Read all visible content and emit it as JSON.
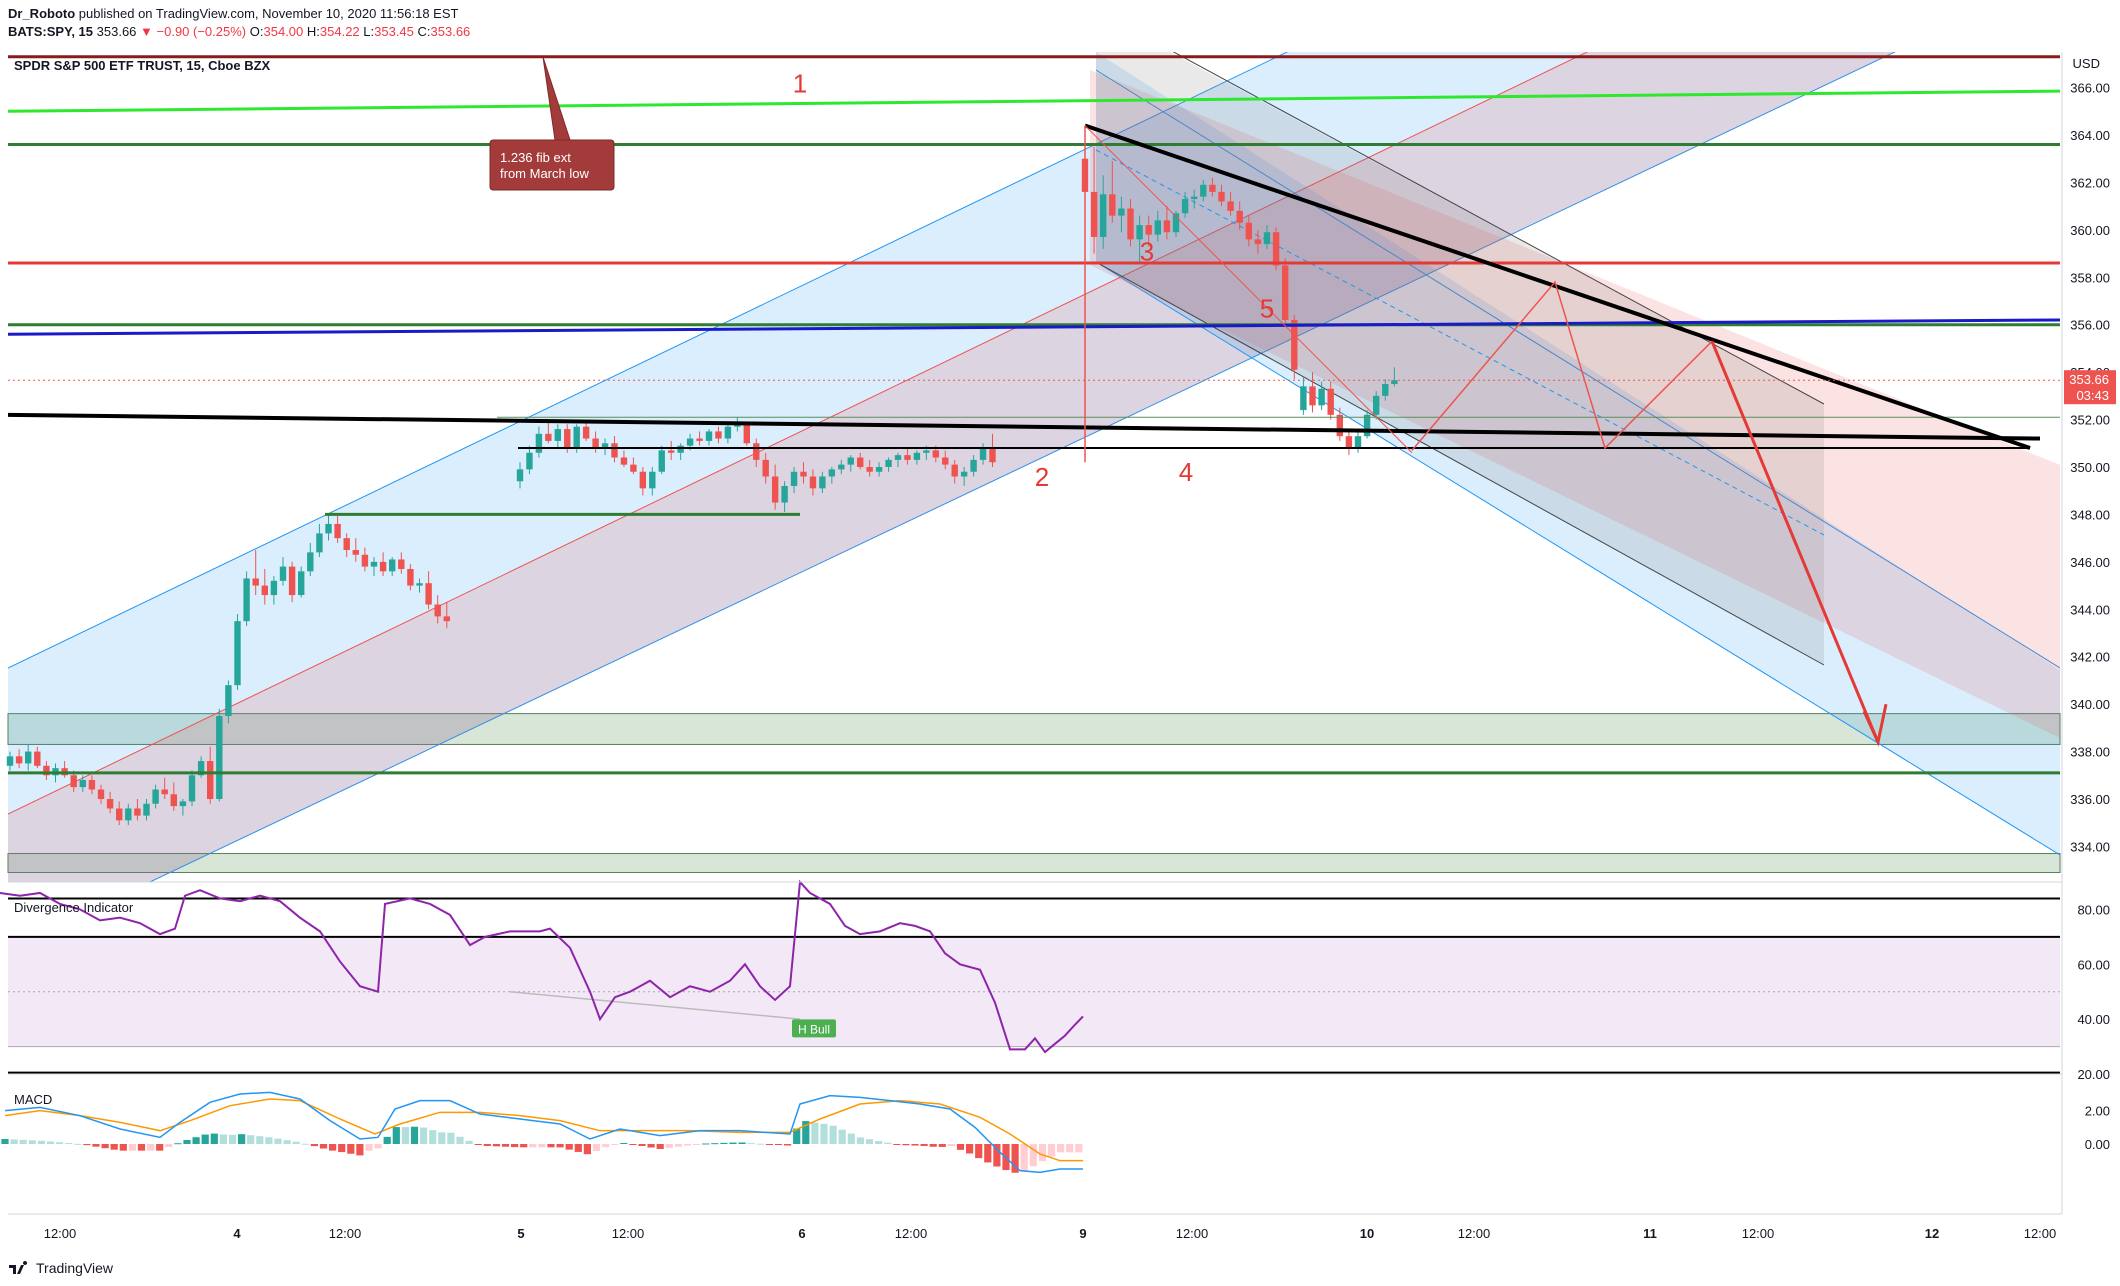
{
  "header": {
    "author": "Dr_Roboto",
    "published": "published on TradingView.com, November 10, 2020 11:56:18 EST",
    "symbol": "BATS:SPY, 15",
    "last": "353.66",
    "change": "▼ −0.90 (−0.25%)",
    "o_label": "O:",
    "o": "354.00",
    "h_label": "H:",
    "h": "354.22",
    "l_label": "L:",
    "l": "353.45",
    "c_label": "C:",
    "c": "353.66"
  },
  "footer": {
    "brand": "TradingView"
  },
  "colors": {
    "up": "#26a69a",
    "down": "#ef5350",
    "blue_channel": "#2196f3",
    "red_channel": "#ef5350",
    "rsi": "#8e24aa",
    "macd": "#2196f3",
    "signal": "#ff9800"
  },
  "chart_data": {
    "type": "candlestick",
    "title": "SPDR S&P 500 ETF TRUST, 15, Cboe BZX",
    "currency": "USD",
    "price_axis": {
      "ylim": [
        332.5,
        367.5
      ],
      "ticks": [
        "366.00",
        "364.00",
        "362.00",
        "360.00",
        "358.00",
        "356.00",
        "354.00",
        "352.00",
        "350.00",
        "348.00",
        "346.00",
        "344.00",
        "342.00",
        "340.00",
        "338.00",
        "336.00",
        "334.00"
      ]
    },
    "time_axis": {
      "ticks": [
        "12:00",
        "4",
        "12:00",
        "5",
        "12:00",
        "6",
        "12:00",
        "9",
        "12:00",
        "10",
        "12:00",
        "11",
        "12:00",
        "12",
        "12:00"
      ]
    },
    "last_price": {
      "value": "353.66",
      "countdown": "03:43",
      "price": 353.66
    },
    "candles": [
      [
        337.4,
        338.0,
        337.2,
        337.8
      ],
      [
        337.8,
        338.1,
        337.3,
        337.5
      ],
      [
        337.5,
        338.3,
        337.2,
        338.0
      ],
      [
        338.0,
        338.2,
        337.3,
        337.4
      ],
      [
        337.4,
        337.6,
        336.8,
        337.0
      ],
      [
        337.0,
        337.5,
        336.7,
        337.3
      ],
      [
        337.3,
        337.6,
        336.9,
        337.0
      ],
      [
        337.0,
        337.2,
        336.3,
        336.5
      ],
      [
        336.5,
        337.0,
        336.3,
        336.8
      ],
      [
        336.8,
        337.0,
        336.2,
        336.4
      ],
      [
        336.4,
        336.6,
        335.8,
        336.0
      ],
      [
        336.0,
        336.3,
        335.4,
        335.6
      ],
      [
        335.6,
        335.9,
        334.9,
        335.1
      ],
      [
        335.1,
        335.8,
        334.9,
        335.6
      ],
      [
        335.6,
        336.0,
        335.1,
        335.3
      ],
      [
        335.3,
        336.0,
        335.1,
        335.8
      ],
      [
        335.8,
        336.6,
        335.6,
        336.4
      ],
      [
        336.4,
        336.9,
        336.0,
        336.2
      ],
      [
        336.2,
        336.7,
        335.5,
        335.7
      ],
      [
        335.7,
        336.0,
        335.3,
        335.9
      ],
      [
        335.9,
        337.2,
        335.7,
        337.0
      ],
      [
        337.0,
        337.8,
        336.9,
        337.6
      ],
      [
        337.6,
        338.2,
        335.8,
        336.0
      ],
      [
        336.0,
        339.8,
        335.9,
        339.5
      ],
      [
        339.5,
        341.0,
        339.2,
        340.8
      ],
      [
        340.8,
        343.8,
        340.6,
        343.5
      ],
      [
        343.5,
        345.6,
        343.3,
        345.3
      ],
      [
        345.3,
        346.5,
        344.6,
        345.0
      ],
      [
        345.0,
        345.7,
        344.2,
        344.6
      ],
      [
        344.6,
        345.4,
        344.2,
        345.2
      ],
      [
        345.2,
        346.2,
        345.0,
        345.8
      ],
      [
        345.8,
        346.0,
        344.3,
        344.6
      ],
      [
        344.6,
        345.8,
        344.5,
        345.6
      ],
      [
        345.6,
        346.8,
        345.4,
        346.4
      ],
      [
        346.4,
        347.6,
        346.2,
        347.2
      ],
      [
        347.2,
        348.0,
        346.9,
        347.6
      ],
      [
        347.6,
        348.0,
        346.8,
        347.0
      ],
      [
        347.0,
        347.2,
        346.2,
        346.5
      ],
      [
        346.5,
        347.0,
        346.0,
        346.3
      ],
      [
        346.3,
        346.6,
        345.6,
        345.8
      ],
      [
        345.8,
        346.2,
        345.4,
        346.0
      ],
      [
        346.0,
        346.4,
        345.4,
        345.6
      ],
      [
        345.6,
        346.2,
        345.4,
        346.1
      ],
      [
        346.1,
        346.4,
        345.5,
        345.7
      ],
      [
        345.7,
        345.9,
        344.8,
        345.0
      ],
      [
        345.0,
        345.3,
        344.7,
        345.1
      ],
      [
        345.1,
        345.6,
        344.0,
        344.2
      ],
      [
        344.2,
        344.6,
        343.4,
        343.7
      ],
      [
        343.7,
        344.3,
        343.2,
        343.5
      ],
      [
        349.4,
        350.2,
        349.1,
        349.9
      ],
      [
        349.9,
        350.9,
        349.7,
        350.6
      ],
      [
        350.6,
        351.7,
        350.4,
        351.4
      ],
      [
        351.4,
        351.9,
        351.0,
        351.1
      ],
      [
        351.1,
        351.8,
        350.8,
        351.6
      ],
      [
        351.6,
        351.8,
        350.6,
        350.8
      ],
      [
        350.8,
        351.8,
        350.6,
        351.7
      ],
      [
        351.7,
        352.0,
        351.1,
        351.2
      ],
      [
        351.2,
        351.5,
        350.6,
        350.8
      ],
      [
        350.8,
        351.2,
        350.5,
        351.0
      ],
      [
        351.0,
        351.3,
        350.2,
        350.4
      ],
      [
        350.4,
        350.7,
        350.0,
        350.1
      ],
      [
        350.1,
        350.4,
        349.7,
        349.8
      ],
      [
        349.8,
        350.0,
        348.8,
        349.1
      ],
      [
        349.1,
        350.0,
        348.8,
        349.8
      ],
      [
        349.8,
        350.9,
        349.7,
        350.7
      ],
      [
        350.7,
        351.1,
        350.3,
        350.6
      ],
      [
        350.6,
        351.0,
        350.3,
        350.9
      ],
      [
        350.9,
        351.4,
        350.7,
        351.2
      ],
      [
        351.2,
        351.5,
        350.9,
        351.1
      ],
      [
        351.1,
        351.6,
        350.9,
        351.5
      ],
      [
        351.5,
        351.7,
        351.0,
        351.2
      ],
      [
        351.2,
        351.9,
        351.0,
        351.7
      ],
      [
        351.7,
        352.1,
        351.5,
        351.8
      ],
      [
        351.8,
        351.9,
        350.9,
        351.0
      ],
      [
        351.0,
        351.2,
        350.0,
        350.3
      ],
      [
        350.3,
        350.6,
        349.3,
        349.6
      ],
      [
        349.6,
        350.1,
        348.2,
        348.5
      ],
      [
        348.5,
        349.4,
        348.1,
        349.2
      ],
      [
        349.2,
        350.0,
        348.9,
        349.8
      ],
      [
        349.8,
        350.2,
        349.3,
        349.6
      ],
      [
        349.6,
        349.9,
        348.8,
        349.1
      ],
      [
        349.1,
        349.8,
        348.9,
        349.6
      ],
      [
        349.6,
        350.0,
        349.3,
        349.9
      ],
      [
        349.9,
        350.3,
        349.7,
        350.1
      ],
      [
        350.1,
        350.5,
        349.8,
        350.4
      ],
      [
        350.4,
        350.6,
        349.9,
        350.0
      ],
      [
        350.0,
        350.3,
        349.6,
        349.8
      ],
      [
        349.8,
        350.2,
        349.6,
        350.0
      ],
      [
        350.0,
        350.4,
        349.8,
        350.3
      ],
      [
        350.3,
        350.6,
        350.0,
        350.5
      ],
      [
        350.5,
        350.8,
        350.1,
        350.3
      ],
      [
        350.3,
        350.7,
        350.1,
        350.6
      ],
      [
        350.6,
        350.9,
        350.3,
        350.7
      ],
      [
        350.7,
        350.9,
        350.2,
        350.4
      ],
      [
        350.4,
        350.7,
        349.9,
        350.1
      ],
      [
        350.1,
        350.3,
        349.3,
        349.6
      ],
      [
        349.6,
        350.0,
        349.2,
        349.8
      ],
      [
        349.8,
        350.5,
        349.6,
        350.3
      ],
      [
        350.3,
        351.0,
        350.1,
        350.8
      ],
      [
        350.8,
        351.4,
        350.0,
        350.2
      ],
      [
        363.0,
        364.4,
        361.0,
        361.6
      ],
      [
        361.6,
        363.5,
        359.0,
        359.7
      ],
      [
        359.7,
        362.3,
        359.2,
        361.5
      ],
      [
        361.5,
        362.9,
        360.3,
        360.6
      ],
      [
        360.6,
        361.4,
        359.9,
        360.9
      ],
      [
        360.9,
        361.3,
        359.3,
        359.6
      ],
      [
        359.6,
        360.6,
        358.6,
        360.2
      ],
      [
        360.2,
        360.6,
        359.3,
        359.8
      ],
      [
        359.8,
        360.8,
        359.5,
        360.4
      ],
      [
        360.4,
        361.0,
        359.6,
        359.9
      ],
      [
        359.9,
        360.8,
        359.7,
        360.7
      ],
      [
        360.7,
        361.6,
        360.5,
        361.3
      ],
      [
        361.3,
        361.7,
        360.9,
        361.4
      ],
      [
        361.4,
        362.1,
        361.2,
        361.9
      ],
      [
        361.9,
        362.2,
        361.4,
        361.6
      ],
      [
        361.6,
        361.9,
        361.0,
        361.2
      ],
      [
        361.2,
        361.6,
        360.6,
        360.8
      ],
      [
        360.8,
        361.2,
        360.0,
        360.3
      ],
      [
        360.3,
        360.6,
        359.3,
        359.6
      ],
      [
        359.6,
        360.0,
        359.0,
        359.4
      ],
      [
        359.4,
        360.2,
        359.2,
        359.9
      ],
      [
        359.9,
        360.1,
        358.3,
        358.5
      ],
      [
        358.5,
        358.8,
        355.9,
        356.2
      ],
      [
        356.2,
        356.4,
        353.7,
        354.1
      ],
      [
        352.4,
        353.8,
        352.2,
        353.4
      ],
      [
        353.4,
        354.0,
        352.3,
        352.6
      ],
      [
        352.6,
        353.6,
        352.4,
        353.3
      ],
      [
        353.3,
        353.6,
        352.0,
        352.2
      ],
      [
        352.2,
        352.5,
        351.1,
        351.3
      ],
      [
        351.3,
        351.6,
        350.5,
        350.8
      ],
      [
        350.8,
        351.5,
        350.6,
        351.3
      ],
      [
        351.3,
        352.4,
        351.2,
        352.2
      ],
      [
        352.2,
        353.2,
        352.0,
        353.0
      ],
      [
        353.0,
        353.7,
        352.8,
        353.5
      ],
      [
        353.5,
        354.2,
        353.4,
        353.66
      ]
    ],
    "horizontal_lines": [
      {
        "price": 367.3,
        "color": "#8b1a1a"
      },
      {
        "price": 363.6,
        "color": "#2e7d32"
      },
      {
        "price": 358.6,
        "color": "#e53935"
      },
      {
        "price": 356.0,
        "color": "#2e7d32"
      },
      {
        "price": 337.1,
        "color": "#2e7d32"
      }
    ],
    "zones": [
      {
        "from": 338.3,
        "to": 339.6
      },
      {
        "from": 332.9,
        "to": 333.7
      }
    ],
    "annotations": [
      {
        "text": "1",
        "x": 800,
        "price": 365.8
      },
      {
        "text": "2",
        "x": 1042,
        "price": 349.2
      },
      {
        "text": "3",
        "x": 1147,
        "price": 358.7
      },
      {
        "text": "4",
        "x": 1186,
        "price": 349.4
      },
      {
        "text": "5",
        "x": 1267,
        "price": 356.3
      }
    ],
    "callout": {
      "line1": "1.236 fib ext",
      "line2": "from March low"
    },
    "rsi": {
      "title": "Divergence Indicator",
      "ylim": [
        20,
        90
      ],
      "ticks": [
        "80.00",
        "60.00",
        "40.00",
        "20.00"
      ],
      "levels": [
        84,
        70,
        50,
        30
      ],
      "tag": "H Bull",
      "values": [
        [
          0,
          86
        ],
        [
          20,
          85
        ],
        [
          40,
          86
        ],
        [
          60,
          82
        ],
        [
          80,
          80
        ],
        [
          100,
          76
        ],
        [
          120,
          77
        ],
        [
          140,
          75
        ],
        [
          160,
          71
        ],
        [
          175,
          73
        ],
        [
          185,
          85
        ],
        [
          200,
          87
        ],
        [
          220,
          84
        ],
        [
          240,
          83
        ],
        [
          260,
          85
        ],
        [
          280,
          83
        ],
        [
          300,
          77
        ],
        [
          320,
          72
        ],
        [
          340,
          61
        ],
        [
          360,
          52
        ],
        [
          378,
          50
        ],
        [
          385,
          82
        ],
        [
          410,
          84
        ],
        [
          430,
          82
        ],
        [
          450,
          78
        ],
        [
          470,
          67
        ],
        [
          485,
          70
        ],
        [
          510,
          72
        ],
        [
          540,
          72
        ],
        [
          550,
          73
        ],
        [
          570,
          66
        ],
        [
          590,
          50
        ],
        [
          600,
          40
        ],
        [
          615,
          48
        ],
        [
          630,
          50
        ],
        [
          650,
          54
        ],
        [
          670,
          48
        ],
        [
          690,
          52
        ],
        [
          710,
          50
        ],
        [
          730,
          54
        ],
        [
          745,
          60
        ],
        [
          760,
          52
        ],
        [
          775,
          47
        ],
        [
          790,
          52
        ],
        [
          800,
          90
        ],
        [
          810,
          86
        ],
        [
          830,
          82
        ],
        [
          845,
          74
        ],
        [
          860,
          71
        ],
        [
          880,
          72
        ],
        [
          900,
          75
        ],
        [
          915,
          74
        ],
        [
          930,
          72
        ],
        [
          945,
          64
        ],
        [
          960,
          60
        ],
        [
          980,
          58
        ],
        [
          995,
          46
        ],
        [
          1010,
          29
        ],
        [
          1025,
          29
        ],
        [
          1035,
          33
        ],
        [
          1045,
          28
        ],
        [
          1055,
          31
        ],
        [
          1065,
          34
        ],
        [
          1075,
          38
        ],
        [
          1083,
          41
        ]
      ]
    },
    "macd": {
      "title": "MACD",
      "ylim": [
        -4.2,
        4.2
      ],
      "ticks": [
        "2.00",
        "0.00"
      ],
      "macd_line": [
        [
          5,
          2.0
        ],
        [
          40,
          2.2
        ],
        [
          80,
          1.7
        ],
        [
          120,
          0.9
        ],
        [
          160,
          0.4
        ],
        [
          180,
          1.3
        ],
        [
          210,
          2.5
        ],
        [
          240,
          3.0
        ],
        [
          270,
          3.1
        ],
        [
          300,
          2.7
        ],
        [
          330,
          1.4
        ],
        [
          360,
          0.3
        ],
        [
          378,
          0.4
        ],
        [
          395,
          2.1
        ],
        [
          420,
          2.6
        ],
        [
          450,
          2.6
        ],
        [
          480,
          1.8
        ],
        [
          520,
          1.5
        ],
        [
          560,
          1.2
        ],
        [
          590,
          0.3
        ],
        [
          620,
          0.9
        ],
        [
          660,
          0.5
        ],
        [
          700,
          0.8
        ],
        [
          740,
          0.8
        ],
        [
          790,
          0.6
        ],
        [
          800,
          2.4
        ],
        [
          830,
          2.9
        ],
        [
          860,
          2.8
        ],
        [
          890,
          2.6
        ],
        [
          920,
          2.4
        ],
        [
          950,
          2.1
        ],
        [
          975,
          1.0
        ],
        [
          1000,
          -0.5
        ],
        [
          1020,
          -1.6
        ],
        [
          1040,
          -1.7
        ],
        [
          1060,
          -1.5
        ],
        [
          1083,
          -1.5
        ]
      ],
      "signal_line": [
        [
          5,
          1.7
        ],
        [
          40,
          2.0
        ],
        [
          80,
          1.7
        ],
        [
          120,
          1.3
        ],
        [
          160,
          0.8
        ],
        [
          190,
          1.4
        ],
        [
          230,
          2.3
        ],
        [
          270,
          2.7
        ],
        [
          300,
          2.6
        ],
        [
          340,
          1.5
        ],
        [
          375,
          0.6
        ],
        [
          400,
          1.2
        ],
        [
          440,
          1.9
        ],
        [
          480,
          1.9
        ],
        [
          520,
          1.7
        ],
        [
          560,
          1.4
        ],
        [
          600,
          0.8
        ],
        [
          640,
          0.8
        ],
        [
          690,
          0.8
        ],
        [
          740,
          0.7
        ],
        [
          790,
          0.7
        ],
        [
          820,
          1.5
        ],
        [
          860,
          2.4
        ],
        [
          900,
          2.6
        ],
        [
          940,
          2.4
        ],
        [
          980,
          1.6
        ],
        [
          1010,
          0.6
        ],
        [
          1040,
          -0.6
        ],
        [
          1060,
          -1.0
        ],
        [
          1083,
          -1.0
        ]
      ],
      "hist_x": [
        5,
        1083
      ]
    }
  }
}
